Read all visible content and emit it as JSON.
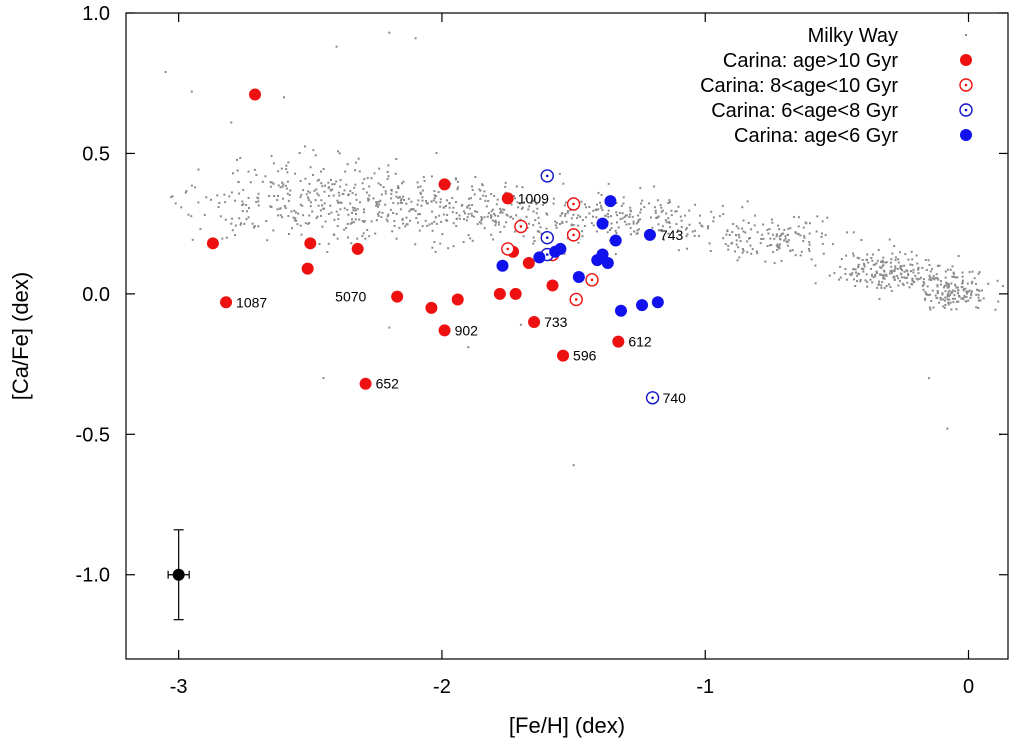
{
  "chart_data": {
    "type": "scatter",
    "xlabel": "[Fe/H] (dex)",
    "ylabel": "[Ca/Fe] (dex)",
    "xlim": [
      -3.2,
      0.15
    ],
    "ylim": [
      -1.3,
      1.0
    ],
    "xticks": [
      {
        "value": -3,
        "label": "-3"
      },
      {
        "value": -2,
        "label": "-2"
      },
      {
        "value": -1,
        "label": "-1"
      },
      {
        "value": 0,
        "label": "0"
      }
    ],
    "yticks": [
      {
        "value": 1.0,
        "label": "1.0"
      },
      {
        "value": 0.5,
        "label": "0.5"
      },
      {
        "value": 0.0,
        "label": "0.0"
      },
      {
        "value": -0.5,
        "label": "-0.5"
      },
      {
        "value": -1.0,
        "label": "-1.0"
      }
    ],
    "grid": false,
    "legend_position": "top-right",
    "legend": [
      {
        "label": "Milky Way",
        "marker": "dot",
        "color": "#8a8a8a"
      },
      {
        "label": "Carina: age>10 Gyr",
        "marker": "filled",
        "color": "#ee1111"
      },
      {
        "label": "Carina: 8<age<10 Gyr",
        "marker": "open-dot",
        "color": "#ee1111"
      },
      {
        "label": "Carina: 6<age<8 Gyr",
        "marker": "open-dot",
        "color": "#1111cc"
      },
      {
        "label": "Carina: age<6 Gyr",
        "marker": "filled",
        "color": "#1111ee"
      }
    ],
    "series": [
      {
        "name": "Milky Way",
        "marker": "dot",
        "color": "#8a8a8a",
        "clumps": [
          {
            "x": -2.45,
            "y": 0.33,
            "sx": 0.38,
            "sy": 0.1,
            "n": 380
          },
          {
            "x": -1.85,
            "y": 0.3,
            "sx": 0.3,
            "sy": 0.07,
            "n": 220
          },
          {
            "x": -1.3,
            "y": 0.27,
            "sx": 0.25,
            "sy": 0.06,
            "n": 180
          },
          {
            "x": -0.75,
            "y": 0.2,
            "sx": 0.22,
            "sy": 0.06,
            "n": 150
          },
          {
            "x": -0.3,
            "y": 0.08,
            "sx": 0.15,
            "sy": 0.05,
            "n": 200
          },
          {
            "x": -0.05,
            "y": 0.01,
            "sx": 0.1,
            "sy": 0.045,
            "n": 160
          }
        ],
        "outliers": [
          {
            "x": -3.05,
            "y": 0.79
          },
          {
            "x": -2.6,
            "y": 0.7
          },
          {
            "x": -2.4,
            "y": 0.88
          },
          {
            "x": -2.2,
            "y": 0.93
          },
          {
            "x": -2.1,
            "y": 0.91
          },
          {
            "x": -1.5,
            "y": -0.61
          },
          {
            "x": -2.45,
            "y": -0.3
          },
          {
            "x": -2.2,
            "y": -0.12
          },
          {
            "x": -1.9,
            "y": -0.19
          },
          {
            "x": -0.15,
            "y": -0.3
          },
          {
            "x": -0.08,
            "y": -0.48
          },
          {
            "x": 0.12,
            "y": -0.5
          },
          {
            "x": -2.95,
            "y": 0.72
          },
          {
            "x": -2.8,
            "y": 0.61
          },
          {
            "x": -1.7,
            "y": -0.11
          },
          {
            "x": -1.25,
            "y": -0.05
          }
        ]
      },
      {
        "name": "Carina: age>10 Gyr",
        "marker": "filled",
        "color": "#ee1111",
        "points": [
          {
            "x": -2.71,
            "y": 0.71
          },
          {
            "x": -1.99,
            "y": 0.39
          },
          {
            "x": -2.87,
            "y": 0.18
          },
          {
            "x": -2.5,
            "y": 0.18
          },
          {
            "x": -2.32,
            "y": 0.16
          },
          {
            "x": -2.51,
            "y": 0.09
          },
          {
            "x": -1.75,
            "y": 0.34,
            "label": "1009"
          },
          {
            "x": -2.82,
            "y": -0.03,
            "label": "1087"
          },
          {
            "x": -2.17,
            "y": -0.01,
            "label": "5070"
          },
          {
            "x": -2.04,
            "y": -0.05
          },
          {
            "x": -1.94,
            "y": -0.02
          },
          {
            "x": -1.99,
            "y": -0.13,
            "label": "902"
          },
          {
            "x": -1.78,
            "y": 0.0
          },
          {
            "x": -1.72,
            "y": 0.0
          },
          {
            "x": -1.73,
            "y": 0.15
          },
          {
            "x": -1.67,
            "y": 0.11
          },
          {
            "x": -1.58,
            "y": 0.03
          },
          {
            "x": -1.65,
            "y": -0.1,
            "label": "733"
          },
          {
            "x": -1.54,
            "y": -0.22,
            "label": "596"
          },
          {
            "x": -1.33,
            "y": -0.17,
            "label": "612"
          },
          {
            "x": -2.29,
            "y": -0.32,
            "label": "652"
          }
        ]
      },
      {
        "name": "Carina: 8<age<10 Gyr",
        "marker": "open-dot",
        "color": "#ee1111",
        "points": [
          {
            "x": -1.5,
            "y": 0.32
          },
          {
            "x": -1.7,
            "y": 0.24
          },
          {
            "x": -1.5,
            "y": 0.21
          },
          {
            "x": -1.75,
            "y": 0.16
          },
          {
            "x": -1.58,
            "y": 0.14
          },
          {
            "x": -1.43,
            "y": 0.05
          },
          {
            "x": -1.49,
            "y": -0.02
          }
        ]
      },
      {
        "name": "Carina: 6<age<8 Gyr",
        "marker": "open-dot",
        "color": "#1111cc",
        "points": [
          {
            "x": -1.6,
            "y": 0.42
          },
          {
            "x": -1.6,
            "y": 0.2
          },
          {
            "x": -1.6,
            "y": 0.14
          },
          {
            "x": -1.2,
            "y": -0.37,
            "label": "740"
          }
        ]
      },
      {
        "name": "Carina: age<6 Gyr",
        "marker": "filled",
        "color": "#1111ee",
        "points": [
          {
            "x": -1.36,
            "y": 0.33
          },
          {
            "x": -1.39,
            "y": 0.25
          },
          {
            "x": -1.34,
            "y": 0.19
          },
          {
            "x": -1.21,
            "y": 0.21,
            "label": "743"
          },
          {
            "x": -1.77,
            "y": 0.1
          },
          {
            "x": -1.63,
            "y": 0.13
          },
          {
            "x": -1.55,
            "y": 0.16
          },
          {
            "x": -1.57,
            "y": 0.15
          },
          {
            "x": -1.39,
            "y": 0.14
          },
          {
            "x": -1.41,
            "y": 0.12
          },
          {
            "x": -1.37,
            "y": 0.11
          },
          {
            "x": -1.48,
            "y": 0.06
          },
          {
            "x": -1.32,
            "y": -0.06
          },
          {
            "x": -1.24,
            "y": -0.04
          },
          {
            "x": -1.18,
            "y": -0.03
          }
        ]
      }
    ],
    "errorbar": {
      "x": -3.0,
      "y": -1.0,
      "xerr": 0.04,
      "yerr": 0.16
    }
  }
}
